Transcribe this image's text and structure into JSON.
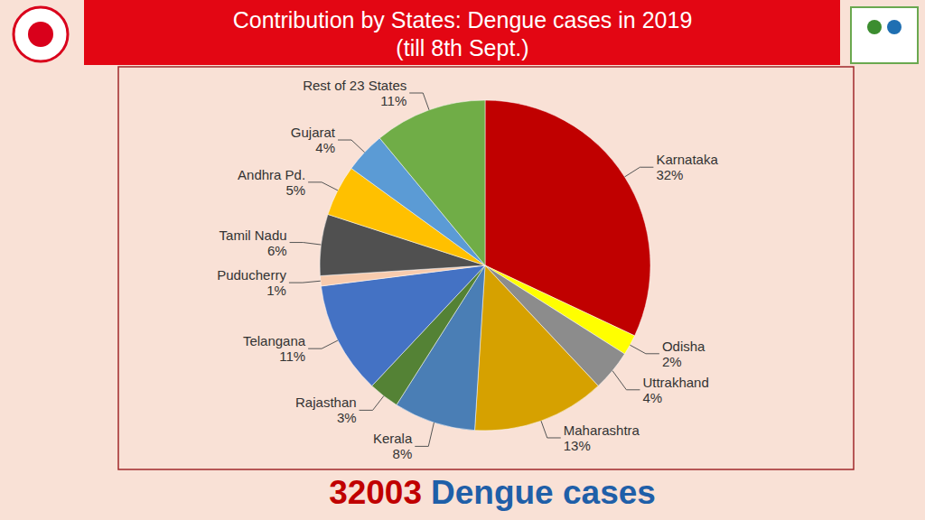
{
  "chart_data": {
    "type": "pie",
    "title": "Contribution by States: Dengue cases in 2019",
    "subtitle": "(till 8th Sept.)",
    "categories": [
      "Karnataka",
      "Odisha",
      "Uttrakhand",
      "Maharashtra",
      "Kerala",
      "Rajasthan",
      "Telangana",
      "Puducherry",
      "Tamil Nadu",
      "Andhra Pd.",
      "Gujarat",
      "Rest of 23 States"
    ],
    "values": [
      32,
      2,
      4,
      13,
      8,
      3,
      11,
      1,
      6,
      5,
      4,
      11
    ],
    "value_labels": [
      "32%",
      "2%",
      "4%",
      "13%",
      "8%",
      "3%",
      "11%",
      "1%",
      "6%",
      "5%",
      "4%",
      "11%"
    ],
    "colors": [
      "#C00000",
      "#FFFF00",
      "#8C8C8C",
      "#D6A100",
      "#4A7EB5",
      "#548235",
      "#4472C4",
      "#F8CBAD",
      "#505050",
      "#FFC000",
      "#5B9BD5",
      "#70AD47"
    ],
    "data_labels": true,
    "total_cases": 32003,
    "total_label": "Dengue cases"
  }
}
